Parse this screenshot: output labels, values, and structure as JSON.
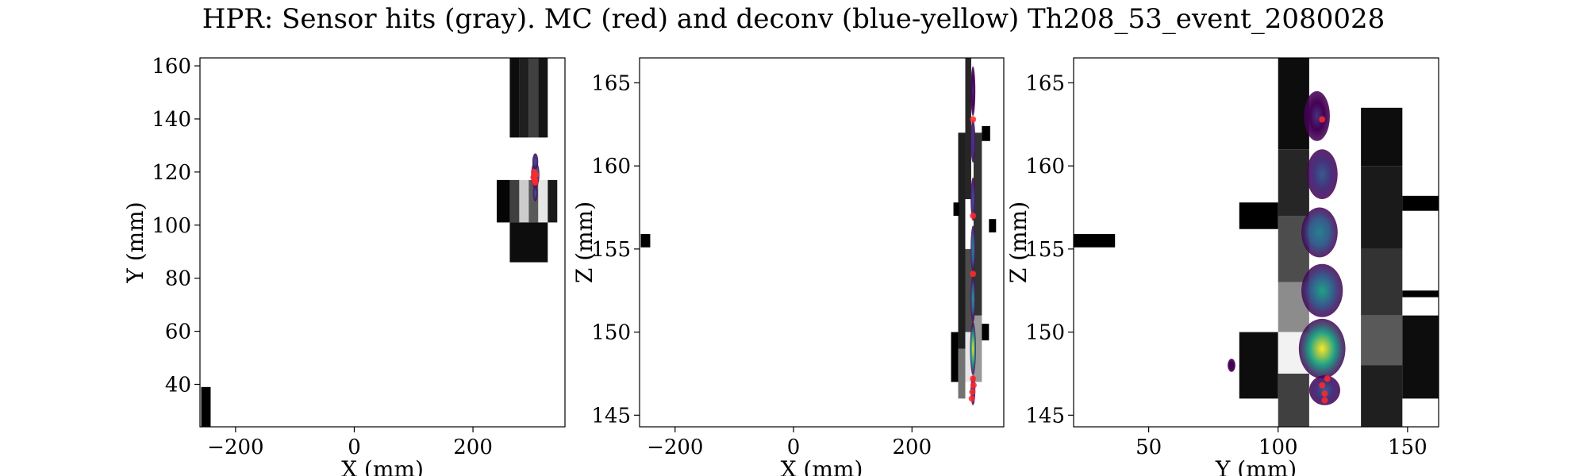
{
  "title": "HPR: Sensor hits (gray). MC (red) and deconv (blue-yellow) Th208_53_event_2080028",
  "colors": {
    "mc": "#ff2a2a",
    "axis": "#000000"
  },
  "chart_data": [
    {
      "type": "heatmap",
      "xlabel": "X (mm)",
      "ylabel": "Y (mm)",
      "xlim": [
        -260,
        355
      ],
      "ylim": [
        24,
        163
      ],
      "xticks": [
        -200,
        0,
        200
      ],
      "yticks": [
        40,
        60,
        80,
        100,
        120,
        140,
        160
      ],
      "sensor_hits": [
        {
          "x0": -258,
          "x1": -242,
          "y0": 24,
          "y1": 39,
          "v": 0.0
        },
        {
          "x0": 262,
          "x1": 278,
          "y0": 133,
          "y1": 163,
          "v": 0.05
        },
        {
          "x0": 278,
          "x1": 294,
          "y0": 133,
          "y1": 163,
          "v": 0.12
        },
        {
          "x0": 294,
          "x1": 310,
          "y0": 133,
          "y1": 163,
          "v": 0.25
        },
        {
          "x0": 310,
          "x1": 326,
          "y0": 133,
          "y1": 163,
          "v": 0.08
        },
        {
          "x0": 240,
          "x1": 262,
          "y0": 101,
          "y1": 117,
          "v": 0.02
        },
        {
          "x0": 262,
          "x1": 278,
          "y0": 101,
          "y1": 117,
          "v": 0.25
        },
        {
          "x0": 278,
          "x1": 294,
          "y0": 101,
          "y1": 117,
          "v": 0.8
        },
        {
          "x0": 294,
          "x1": 310,
          "y0": 101,
          "y1": 117,
          "v": 0.35
        },
        {
          "x0": 310,
          "x1": 326,
          "y0": 101,
          "y1": 117,
          "v": 0.9
        },
        {
          "x0": 326,
          "x1": 342,
          "y0": 101,
          "y1": 117,
          "v": 0.1
        },
        {
          "x0": 262,
          "x1": 326,
          "y0": 86,
          "y1": 101,
          "v": 0.05
        }
      ],
      "deconv": [
        {
          "x": 305,
          "y": 119,
          "sx": 7,
          "sy": 5,
          "v": 0.6
        },
        {
          "x": 305,
          "y": 124,
          "sx": 5,
          "sy": 3,
          "v": 0.3
        },
        {
          "x": 305,
          "y": 112,
          "sx": 4,
          "sy": 3,
          "v": 0.25
        }
      ],
      "mc": [
        {
          "x": 302,
          "y": 118
        },
        {
          "x": 304,
          "y": 117
        },
        {
          "x": 306,
          "y": 119
        },
        {
          "x": 303,
          "y": 120
        },
        {
          "x": 305,
          "y": 116
        }
      ]
    },
    {
      "type": "heatmap",
      "xlabel": "X (mm)",
      "ylabel": "Z (mm)",
      "xlim": [
        -260,
        355
      ],
      "ylim": [
        144.3,
        166.5
      ],
      "xticks": [
        -200,
        0,
        200
      ],
      "yticks": [
        145,
        150,
        155,
        160,
        165
      ],
      "sensor_hits": [
        {
          "x0": -258,
          "x1": -242,
          "y0": 155.1,
          "y1": 155.9,
          "v": 0.0
        },
        {
          "x0": 290,
          "x1": 300,
          "y0": 158,
          "y1": 166.5,
          "v": 0.15
        },
        {
          "x0": 278,
          "x1": 290,
          "y0": 149,
          "y1": 162,
          "v": 0.12
        },
        {
          "x0": 278,
          "x1": 290,
          "y0": 146,
          "y1": 149,
          "v": 0.45
        },
        {
          "x0": 290,
          "x1": 304,
          "y0": 150,
          "y1": 155,
          "v": 0.3
        },
        {
          "x0": 290,
          "x1": 304,
          "y0": 147,
          "y1": 150,
          "v": 0.9
        },
        {
          "x0": 304,
          "x1": 318,
          "y0": 147,
          "y1": 151,
          "v": 0.6
        },
        {
          "x0": 304,
          "x1": 318,
          "y0": 151,
          "y1": 162,
          "v": 0.2
        },
        {
          "x0": 266,
          "x1": 278,
          "y0": 147,
          "y1": 150,
          "v": 0.0
        },
        {
          "x0": 318,
          "x1": 330,
          "y0": 149.5,
          "y1": 150.5,
          "v": 0.0
        },
        {
          "x0": 330,
          "x1": 342,
          "y0": 156,
          "y1": 156.8,
          "v": 0.0
        },
        {
          "x0": 318,
          "x1": 332,
          "y0": 161.5,
          "y1": 162.4,
          "v": 0.0
        },
        {
          "x0": 270,
          "x1": 280,
          "y0": 157,
          "y1": 157.8,
          "v": 0.0
        }
      ],
      "deconv": [
        {
          "x": 303,
          "y": 149,
          "sx": 5,
          "sy": 1.6,
          "v": 0.95
        },
        {
          "x": 303,
          "y": 152,
          "sx": 4,
          "sy": 1.4,
          "v": 0.55
        },
        {
          "x": 303,
          "y": 155,
          "sx": 3.5,
          "sy": 1.4,
          "v": 0.4
        },
        {
          "x": 303,
          "y": 158,
          "sx": 3,
          "sy": 1.3,
          "v": 0.25
        },
        {
          "x": 303,
          "y": 161.5,
          "sx": 3,
          "sy": 1.3,
          "v": 0.15
        },
        {
          "x": 303,
          "y": 164.5,
          "sx": 3,
          "sy": 1.5,
          "v": 0.08
        },
        {
          "x": 303,
          "y": 146.5,
          "sx": 4,
          "sy": 0.9,
          "v": 0.35
        }
      ],
      "mc": [
        {
          "x": 302,
          "y": 146.4
        },
        {
          "x": 304,
          "y": 146.8
        },
        {
          "x": 303,
          "y": 147.2
        },
        {
          "x": 301,
          "y": 146.0
        },
        {
          "x": 303,
          "y": 153.5
        },
        {
          "x": 303,
          "y": 157.0
        },
        {
          "x": 303,
          "y": 162.8
        }
      ]
    },
    {
      "type": "heatmap",
      "xlabel": "Y (mm)",
      "ylabel": "Z (mm)",
      "xlim": [
        21,
        162
      ],
      "ylim": [
        144.3,
        166.5
      ],
      "xticks": [
        50,
        100,
        150
      ],
      "yticks": [
        145,
        150,
        155,
        160,
        165
      ],
      "sensor_hits": [
        {
          "x0": 21,
          "x1": 37,
          "y0": 155.1,
          "y1": 155.9,
          "v": 0.0
        },
        {
          "x0": 85,
          "x1": 100,
          "y0": 156.2,
          "y1": 157.8,
          "v": 0.0
        },
        {
          "x0": 85,
          "x1": 100,
          "y0": 146,
          "y1": 150,
          "v": 0.05
        },
        {
          "x0": 100,
          "x1": 112,
          "y0": 161,
          "y1": 166.5,
          "v": 0.05
        },
        {
          "x0": 100,
          "x1": 112,
          "y0": 157,
          "y1": 161,
          "v": 0.15
        },
        {
          "x0": 100,
          "x1": 112,
          "y0": 153,
          "y1": 157,
          "v": 0.3
        },
        {
          "x0": 100,
          "x1": 112,
          "y0": 150,
          "y1": 153,
          "v": 0.55
        },
        {
          "x0": 100,
          "x1": 112,
          "y0": 147.5,
          "y1": 150,
          "v": 0.95
        },
        {
          "x0": 100,
          "x1": 112,
          "y0": 144.3,
          "y1": 147.5,
          "v": 0.25
        },
        {
          "x0": 132,
          "x1": 148,
          "y0": 160,
          "y1": 163.5,
          "v": 0.05
        },
        {
          "x0": 132,
          "x1": 148,
          "y0": 155,
          "y1": 160,
          "v": 0.1
        },
        {
          "x0": 132,
          "x1": 148,
          "y0": 151,
          "y1": 155,
          "v": 0.2
        },
        {
          "x0": 132,
          "x1": 148,
          "y0": 148,
          "y1": 151,
          "v": 0.35
        },
        {
          "x0": 132,
          "x1": 148,
          "y0": 144.3,
          "y1": 148,
          "v": 0.12
        },
        {
          "x0": 148,
          "x1": 162,
          "y0": 157.3,
          "y1": 158.2,
          "v": 0.0
        },
        {
          "x0": 148,
          "x1": 162,
          "y0": 152.1,
          "y1": 152.5,
          "v": 0.0
        },
        {
          "x0": 148,
          "x1": 162,
          "y0": 146,
          "y1": 151,
          "v": 0.05
        }
      ],
      "deconv": [
        {
          "x": 117,
          "y": 149,
          "sx": 9,
          "sy": 1.8,
          "v": 0.95
        },
        {
          "x": 117,
          "y": 152.5,
          "sx": 8,
          "sy": 1.6,
          "v": 0.6
        },
        {
          "x": 116,
          "y": 156,
          "sx": 7,
          "sy": 1.5,
          "v": 0.45
        },
        {
          "x": 117,
          "y": 159.5,
          "sx": 6,
          "sy": 1.5,
          "v": 0.3
        },
        {
          "x": 115,
          "y": 163,
          "sx": 5,
          "sy": 1.5,
          "v": 0.12
        },
        {
          "x": 118,
          "y": 146.5,
          "sx": 6,
          "sy": 0.9,
          "v": 0.35
        },
        {
          "x": 82,
          "y": 148,
          "sx": 1.5,
          "sy": 0.4,
          "v": 0.05
        }
      ],
      "mc": [
        {
          "x": 118,
          "y": 146.3
        },
        {
          "x": 117,
          "y": 146.8
        },
        {
          "x": 119,
          "y": 147.2
        },
        {
          "x": 118,
          "y": 145.9
        },
        {
          "x": 117,
          "y": 162.8
        }
      ]
    }
  ]
}
